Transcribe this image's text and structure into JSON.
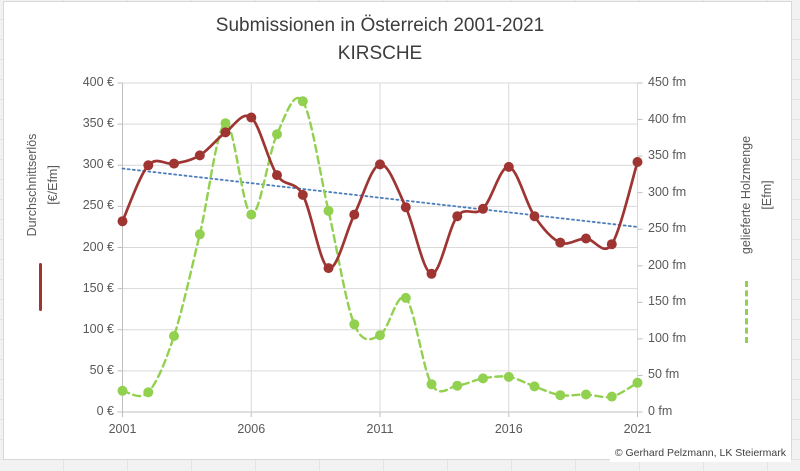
{
  "title": {
    "line1": "Submissionen in Österreich 2001-2021",
    "line2": "KIRSCHE"
  },
  "left_axis": {
    "label": "Durchschnittserlös",
    "unit": "[€/Efm]",
    "ticks": [
      "400 €",
      "350 €",
      "300 €",
      "250 €",
      "200 €",
      "150 €",
      "100 €",
      "50 €",
      "0 €"
    ]
  },
  "right_axis": {
    "label": "gelieferte Holzmenge",
    "unit": "[Efm]",
    "ticks": [
      "450 fm",
      "400 fm",
      "350 fm",
      "300 fm",
      "250 fm",
      "200 fm",
      "150 fm",
      "100 fm",
      "50 fm",
      "0 fm"
    ]
  },
  "x_axis": {
    "ticks": [
      "2001",
      "2006",
      "2011",
      "2016",
      "2021"
    ]
  },
  "credit": "© Gerhard Pelzmann, LK Steiermark",
  "colors": {
    "revenue": "#9e3533",
    "volume": "#92d050",
    "trend": "#4a7dbb",
    "grid": "#d9d9d9",
    "axis": "#bfbfbf",
    "tick_text": "#595959",
    "title_text": "#3d3d3d"
  },
  "chart_data": {
    "type": "line",
    "title": "Submissionen in Österreich 2001-2021 KIRSCHE",
    "x": [
      2001,
      2002,
      2003,
      2004,
      2005,
      2006,
      2007,
      2008,
      2009,
      2010,
      2011,
      2012,
      2013,
      2014,
      2015,
      2016,
      2017,
      2018,
      2019,
      2020,
      2021
    ],
    "series": [
      {
        "id": "revenue",
        "name": "Durchschnittserlös [€/Efm]",
        "axis": "left",
        "style": "solid",
        "color": "#9e3533",
        "values": [
          232,
          300,
          302,
          312,
          340,
          358,
          288,
          264,
          175,
          240,
          301,
          249,
          168,
          238,
          247,
          298,
          238,
          206,
          211,
          204,
          304
        ]
      },
      {
        "id": "volume",
        "name": "gelieferte Holzmenge [Efm]",
        "axis": "right",
        "style": "dashed",
        "color": "#92d050",
        "values": [
          29,
          27,
          104,
          243,
          395,
          270,
          380,
          425,
          275,
          120,
          105,
          156,
          38,
          36,
          46,
          48,
          35,
          23,
          24,
          21,
          40
        ]
      },
      {
        "id": "trend",
        "name": "Trendlinie (linear, Durchschnittserlös)",
        "axis": "left",
        "style": "dotted",
        "color": "#4a7dbb",
        "trend_endpoints": [
          296,
          225
        ]
      }
    ],
    "left_ylim": [
      0,
      400
    ],
    "right_ylim": [
      0,
      450
    ],
    "x_tick_years": [
      2001,
      2006,
      2011,
      2016,
      2021
    ],
    "grid": true,
    "legend_position": "beside-axis-titles"
  }
}
